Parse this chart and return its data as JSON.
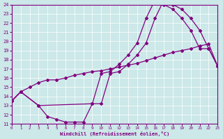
{
  "bg_color": "#cce8e8",
  "line_color": "#800080",
  "xlabel": "Windchill (Refroidissement éolien,°C)",
  "xlim": [
    0,
    23
  ],
  "ylim": [
    11,
    24
  ],
  "xticks": [
    0,
    1,
    2,
    3,
    4,
    5,
    6,
    7,
    8,
    9,
    10,
    11,
    12,
    13,
    14,
    15,
    16,
    17,
    18,
    19,
    20,
    21,
    22,
    23
  ],
  "yticks": [
    11,
    12,
    13,
    14,
    15,
    16,
    17,
    18,
    19,
    20,
    21,
    22,
    23,
    24
  ],
  "line1_x": [
    0,
    1,
    3,
    4,
    5,
    6,
    7,
    8,
    9,
    10,
    11,
    12,
    13,
    14,
    15,
    16,
    17,
    18,
    19,
    20,
    21,
    22,
    23
  ],
  "line1_y": [
    13.5,
    14.5,
    13.0,
    11.8,
    11.5,
    11.2,
    11.2,
    11.2,
    13.2,
    13.2,
    16.5,
    16.7,
    17.5,
    18.5,
    19.8,
    22.5,
    24.5,
    24.0,
    23.5,
    22.5,
    21.2,
    19.2,
    17.3
  ],
  "line2_x": [
    0,
    1,
    2,
    3,
    4,
    5,
    6,
    7,
    8,
    9,
    10,
    11,
    12,
    13,
    14,
    15,
    16,
    17,
    18,
    19,
    20,
    21,
    22,
    23
  ],
  "line2_y": [
    13.5,
    14.5,
    15.0,
    15.5,
    15.8,
    15.8,
    16.0,
    16.3,
    16.5,
    16.7,
    16.8,
    17.0,
    17.2,
    17.4,
    17.6,
    17.9,
    18.2,
    18.5,
    18.8,
    19.0,
    19.2,
    19.5,
    19.7,
    17.3
  ],
  "line3_x": [
    0,
    1,
    3,
    9,
    10,
    11,
    12,
    13,
    14,
    15,
    16,
    17,
    18,
    19,
    20,
    21,
    22,
    23
  ],
  "line3_y": [
    13.5,
    14.5,
    13.0,
    13.2,
    16.5,
    16.7,
    17.5,
    18.5,
    19.8,
    22.5,
    24.5,
    24.0,
    23.5,
    22.5,
    21.2,
    19.2,
    19.2,
    17.3
  ]
}
